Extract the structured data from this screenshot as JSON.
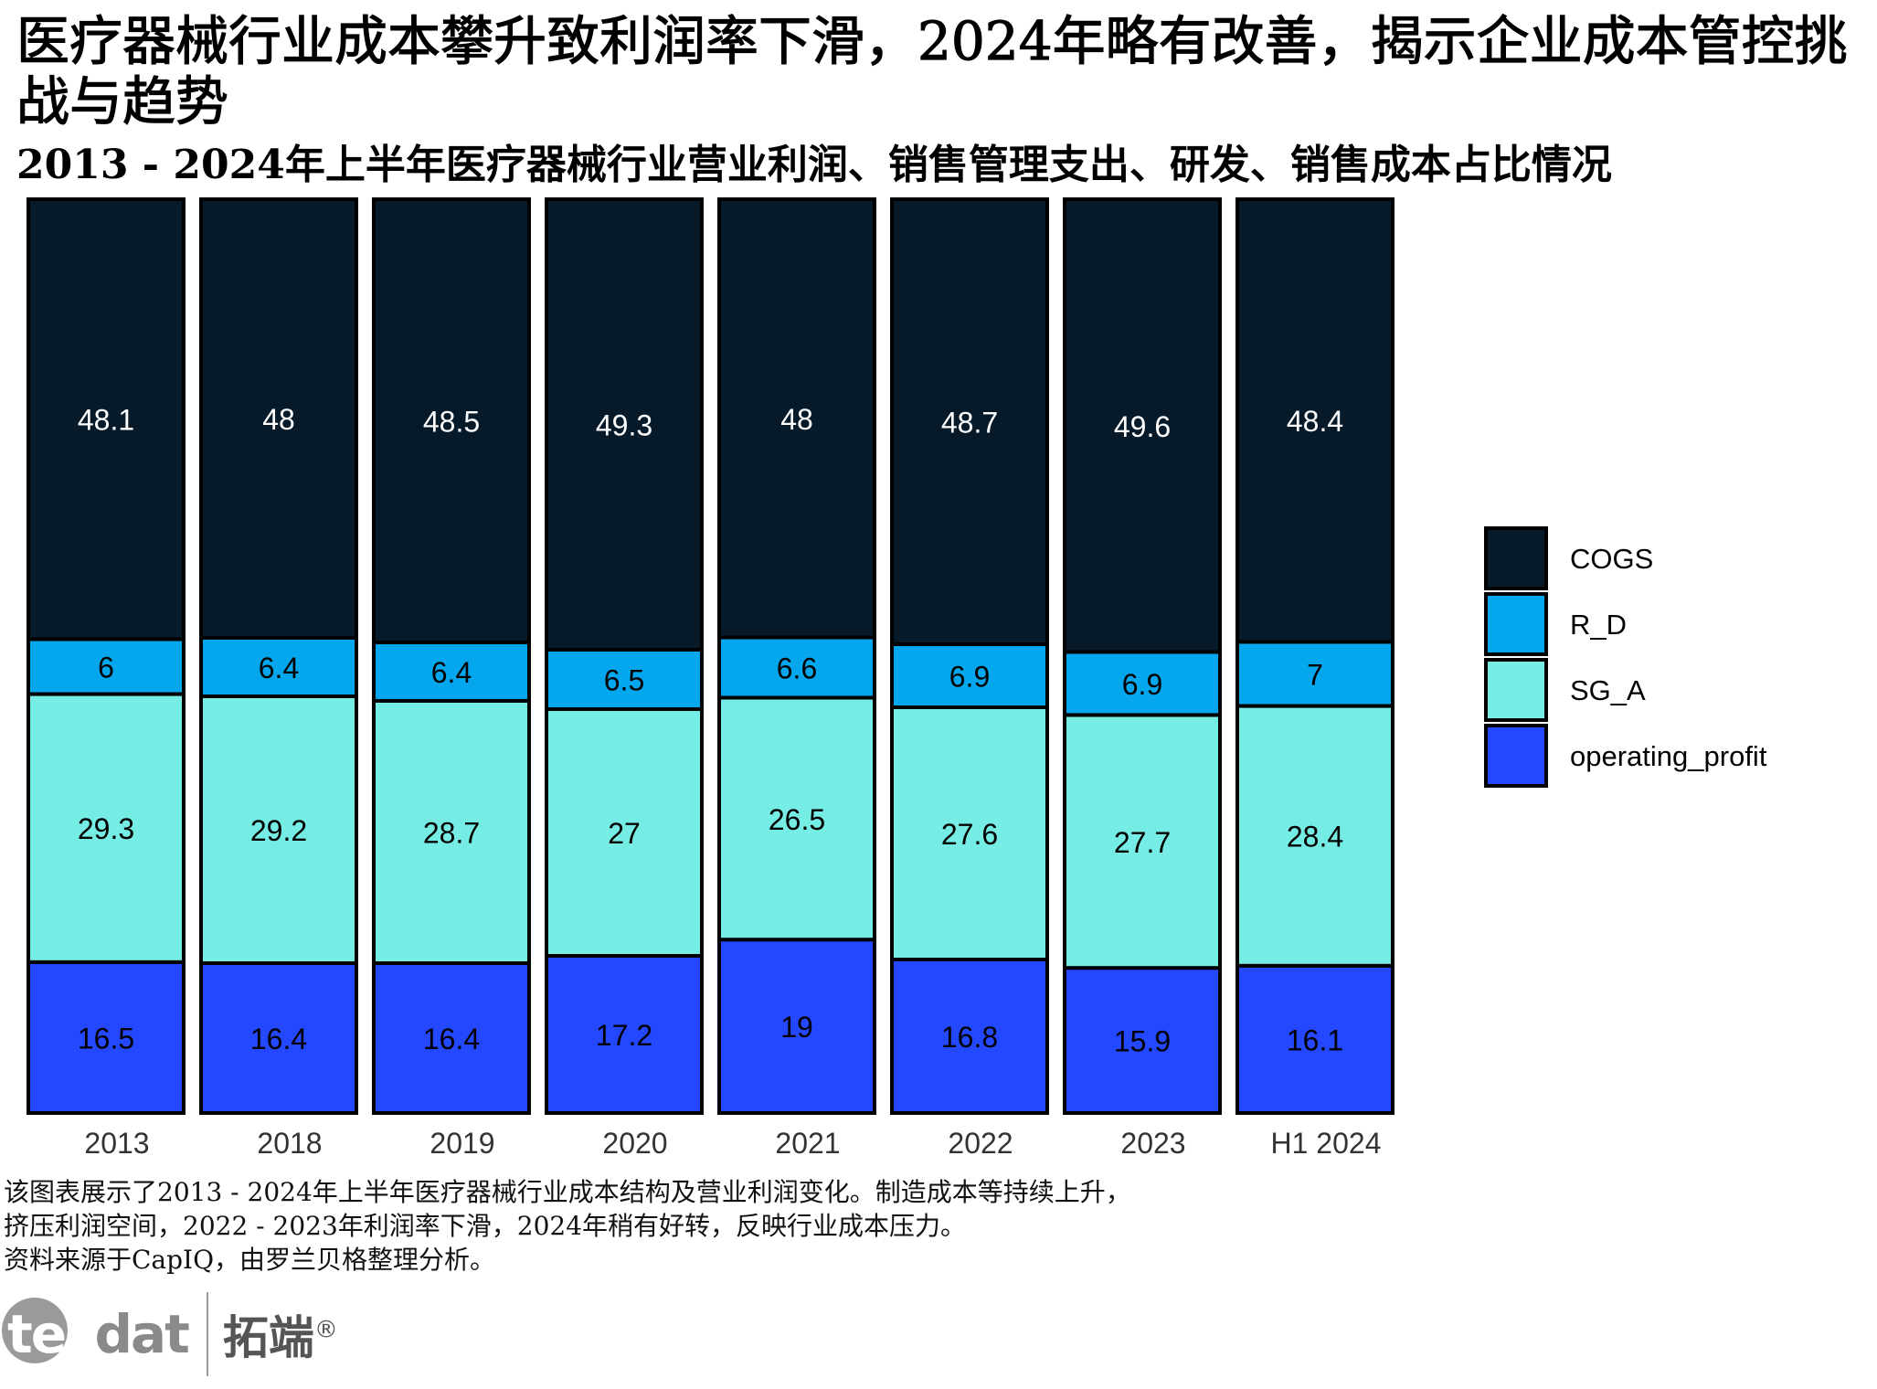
{
  "title": "医疗器械行业成本攀升致利润率下滑，2024年略有改善，揭示企业成本管控挑战与趋势",
  "subtitle": "2013 - 2024年上半年医疗器械行业营业利润、销售管理支出、研发、销售成本占比情况",
  "footer": {
    "line1": "该图表展示了2013 - 2024年上半年医疗器械行业成本结构及营业利润变化。制造成本等持续上升，",
    "line2": "挤压利润空间，2022 - 2023年利润率下滑，2024年稍有好转，反映行业成本压力。",
    "line3": "资料来源于CapIQ，由罗兰贝格整理分析。"
  },
  "logo": {
    "mark": "tecdat",
    "mark_lead": "tec",
    "mark_tail": "dat",
    "cn": "拓端",
    "reg": "®"
  },
  "chart_data": {
    "type": "bar",
    "stacked": true,
    "title": "2013 - 2024年上半年医疗器械行业营业利润、销售管理支出、研发、销售成本占比情况",
    "xlabel": "",
    "ylabel": "",
    "ylim": [
      0,
      100
    ],
    "grid": false,
    "legend_position": "right",
    "categories": [
      "2013",
      "2018",
      "2019",
      "2020",
      "2021",
      "2022",
      "2023",
      "H1 2024"
    ],
    "series": [
      {
        "name": "operating_profit",
        "color": "#2448ff",
        "values": [
          16.5,
          16.4,
          16.4,
          17.2,
          19,
          16.8,
          15.9,
          16.1
        ]
      },
      {
        "name": "SG_A",
        "color": "#76ede4",
        "values": [
          29.3,
          29.2,
          28.7,
          27,
          26.5,
          27.6,
          27.7,
          28.4
        ]
      },
      {
        "name": "R_D",
        "color": "#04a7ee",
        "values": [
          6,
          6.4,
          6.4,
          6.5,
          6.6,
          6.9,
          6.9,
          7
        ]
      },
      {
        "name": "COGS",
        "color": "#061a2a",
        "values": [
          48.1,
          48,
          48.5,
          49.3,
          48,
          48.7,
          49.6,
          48.4
        ]
      }
    ],
    "legend_order": [
      "COGS",
      "R_D",
      "SG_A",
      "operating_profit"
    ]
  }
}
